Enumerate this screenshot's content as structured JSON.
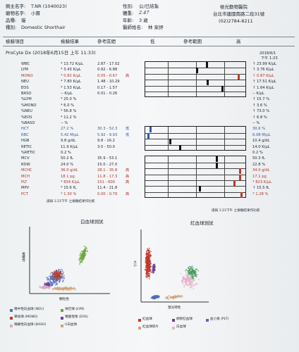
{
  "header": {
    "owner_label": "飼主名字:",
    "owner_value": "T.NR (1040023)",
    "pet_label": "寵物名字:",
    "pet_value": "小寶",
    "species_label": "品種:",
    "species_value": "貓",
    "breed_label": "種別:",
    "breed_value": "Domestic Shorthair",
    "sex_label": "性別:",
    "sex_value": "公/已結紮",
    "weight_label": "體重:",
    "weight_value": "2.47",
    "age_label": "年齡:",
    "age_value": "3 歲",
    "doctor_label": "醫師姓名:",
    "doctor_value": "林 家妤",
    "hospital_name": "極光動物醫院",
    "hospital_address": "台北市建國南路二段31號",
    "hospital_phone": "(02)2784-8211"
  },
  "table_header": {
    "item": "檢驗項目",
    "result": "檢驗結果",
    "ref": "參考區間",
    "low": "低",
    "ref_range": "參考範圍",
    "high": "高"
  },
  "analyzer": {
    "title": "ProCyte Dx (2018年6月15日 上午 11:33)",
    "history_date": "2018/6/1",
    "history_time": "下午 1:23",
    "trend_note": "請與 1:23下午 之檢驗結果作比較"
  },
  "rows": [
    {
      "name": "WBC",
      "value": "* 13.72 K/μL",
      "ref": "2.87 - 17.02",
      "flag": "",
      "prev": "↑ 23.99 K/μL",
      "level": 0.62,
      "color": "#111"
    },
    {
      "name": "LYM",
      "value": "* 3.43 K/μL",
      "ref": "0.92 - 6.88",
      "flag": "",
      "prev": "↑ 3.76 K/μL",
      "level": 0.52,
      "color": "#111"
    },
    {
      "name": "MONO",
      "value": "* 0.82 K/μL",
      "ref": "0.05 - 0.67",
      "flag": "高",
      "prev": "↑ 0.87 K/μL",
      "level": 0.94,
      "color": "#c0392b",
      "red": true
    },
    {
      "name": "NEU",
      "value": "* 7.80 K/μL",
      "ref": "1.48 - 10.29",
      "flag": "",
      "prev": "↑ 17.51 K/μL",
      "level": 0.63,
      "color": "#111"
    },
    {
      "name": "EOS",
      "value": "* 1.53 K/μL",
      "ref": "0.17 - 1.57",
      "flag": "",
      "prev": "↑ 1.64 K/μL",
      "level": 0.78,
      "color": "#111"
    },
    {
      "name": "BASO",
      "value": "-- K/μL",
      "ref": "0.01 - 0.26",
      "flag": "",
      "prev": "-- K/μL",
      "level": null,
      "color": "#111"
    },
    {
      "name": "%LYM",
      "value": "* 25.0 %",
      "ref": "",
      "flag": "",
      "prev": "↑ 15.7 %",
      "level": null
    },
    {
      "name": "%MONO",
      "value": "* 6.0 %",
      "ref": "",
      "flag": "",
      "prev": "↑ 3.6 %",
      "level": null
    },
    {
      "name": "%NEU",
      "value": "* 56.8 %",
      "ref": "",
      "flag": "",
      "prev": "↑ 73.0 %",
      "level": null
    },
    {
      "name": "%EOS",
      "value": "* 11.2 %",
      "ref": "",
      "flag": "",
      "prev": "↑ 6.8 %",
      "level": null
    },
    {
      "name": "%BASO",
      "value": "-- %",
      "ref": "",
      "flag": "",
      "prev": "-- %",
      "level": null
    },
    {
      "name": "HCT",
      "value": "27.2 %",
      "ref": "30.3 - 52.3",
      "flag": "低",
      "prev": "30.6 %",
      "level": 0.05,
      "color": "#2d5aa8",
      "blue": true
    },
    {
      "name": "RBC",
      "value": "5.42 M/μL",
      "ref": "5.92 - 9.93",
      "flag": "低",
      "prev": "6.08 M/μL",
      "level": 0.03,
      "color": "#2d5aa8",
      "blue": true
    },
    {
      "name": "HGB",
      "value": "9.8 g/dL",
      "ref": "9.8 - 16.2",
      "flag": "",
      "prev": "10.4 g/dL",
      "level": 0.25,
      "color": "#111"
    },
    {
      "name": "RETIC",
      "value": "11.9 K/μL",
      "ref": "3.0 - 50.0",
      "flag": "",
      "prev": "14.0 K/μL",
      "level": 0.35,
      "color": "#111"
    },
    {
      "name": "%RETIC",
      "value": "0.2 %",
      "ref": "",
      "flag": "",
      "prev": "0.2 %",
      "level": null
    },
    {
      "name": "MCV",
      "value": "50.2 fL",
      "ref": "35.9 - 53.1",
      "flag": "",
      "prev": "50.3 fL",
      "level": 0.72,
      "color": "#111"
    },
    {
      "name": "RDW",
      "value": "24.0 %",
      "ref": "15.0 - 27.0",
      "flag": "",
      "prev": "22.8 %",
      "level": 0.72,
      "color": "#111"
    },
    {
      "name": "MCHC",
      "value": "36.0 g/dL",
      "ref": "28.1 - 35.8",
      "flag": "高",
      "prev": "34.0 g/dL",
      "level": 0.96,
      "color": "#c0392b",
      "red": true
    },
    {
      "name": "MCH",
      "value": "18.1 pg",
      "ref": "11.8 - 17.3",
      "flag": "高",
      "prev": "17.1 pg",
      "level": 0.96,
      "color": "#c0392b",
      "red": true
    },
    {
      "name": "PLT",
      "value": "* 834 K/μL",
      "ref": "151 - 600",
      "flag": "高",
      "prev": "* 823 K/μL",
      "level": 0.9,
      "color": "#c0392b",
      "red": true
    },
    {
      "name": "MPV",
      "value": "* 15.6 fL",
      "ref": "11.4 - 21.8",
      "flag": "",
      "prev": "↑ 15.5 fL",
      "level": 0.55,
      "color": "#111"
    },
    {
      "name": "PCT",
      "value": "* 1.30 %",
      "ref": "0.00 - 0.79",
      "flag": "高",
      "prev": "* 1.28 %",
      "level": 0.97,
      "color": "#c0392b",
      "red": true
    }
  ],
  "charts": {
    "wbc_title": "白血球測試",
    "rbc_title": "紅血球測試",
    "wbc_xlabel": "顆粒性",
    "wbc_ylabel": "複雜性",
    "rbc_xlabel": "螢光特性",
    "rbc_ylabel": "大小",
    "wbc_legend": [
      {
        "label": "嗜中性白血球 (NEU)",
        "color": "#4f6fb5"
      },
      {
        "label": "淋巴球 (LYM)",
        "color": "#6aa63a"
      },
      {
        "label": "單核球 (MONO)",
        "color": "#c0392b"
      },
      {
        "label": "嗜酸性球 (EOS)",
        "color": "#6a3f9a"
      },
      {
        "label": "嗜鹼性白血球 (BASO)",
        "color": "#d9a7c9"
      },
      {
        "label": "U白血球",
        "color": "#cfa277"
      }
    ],
    "rbc_legend": [
      {
        "label": "紅血球",
        "color": "#c0392b"
      },
      {
        "label": "網狀紅血球",
        "color": "#6a3f9a"
      },
      {
        "label": "血小板 (PLT)",
        "color": "#4f6fb5"
      },
      {
        "label": "紅血球碎片",
        "color": "#cfa277"
      },
      {
        "label": "白血球",
        "color": "#e0b3c7"
      }
    ]
  }
}
